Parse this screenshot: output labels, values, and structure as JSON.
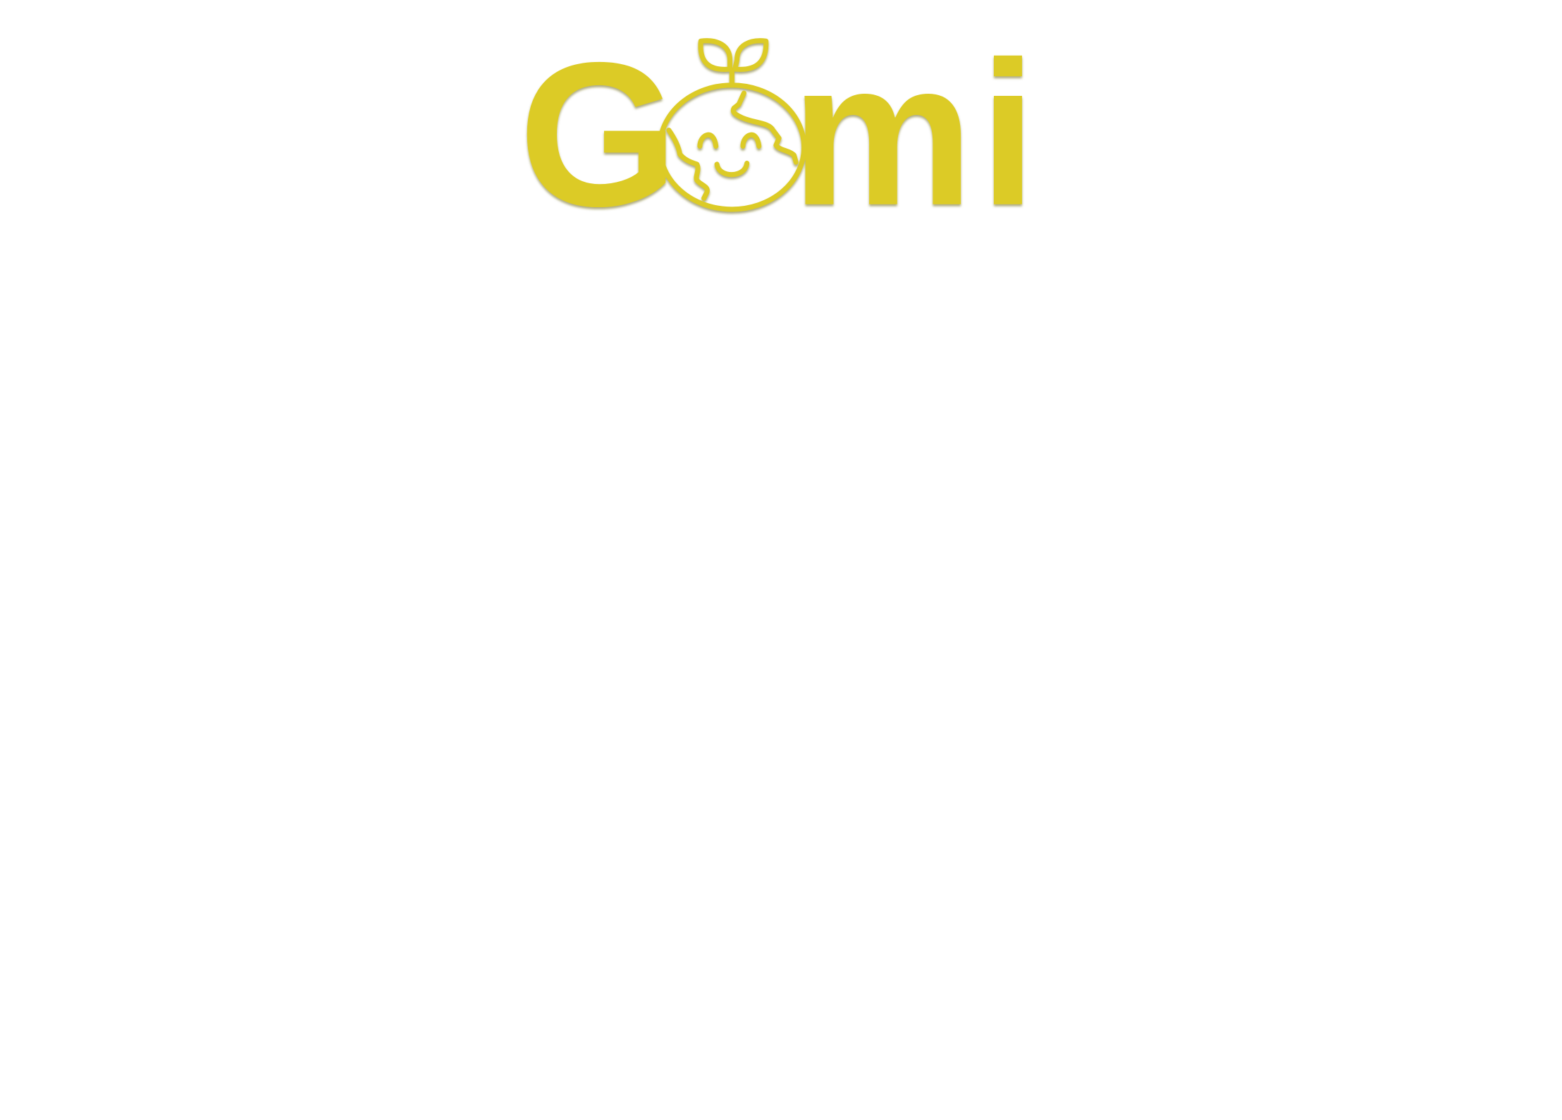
{
  "logo": {
    "text_start": "G",
    "text_end": "mi"
  }
}
